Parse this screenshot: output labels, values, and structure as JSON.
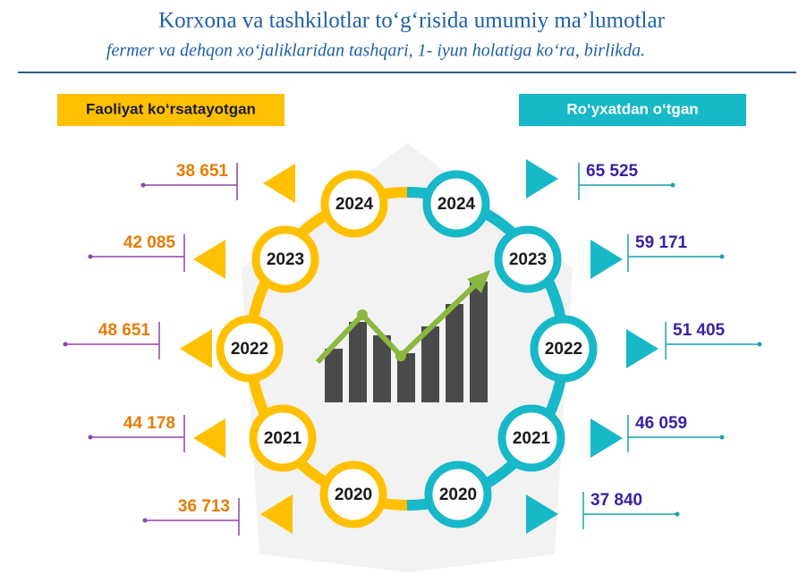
{
  "header": {
    "title": "Korxona va tashkilotlar to‘g‘risida umumiy ma’lumotlar",
    "subtitle": "fermer va dehqon xo‘jaliklaridan tashqari, 1- iyun holatiga ko‘ra, birlikda."
  },
  "left": {
    "label": "Faoliyat ko‘rsatayotgan",
    "items": [
      {
        "year": "2024",
        "value": "38 651"
      },
      {
        "year": "2023",
        "value": "42 085"
      },
      {
        "year": "2022",
        "value": "48 651"
      },
      {
        "year": "2021",
        "value": "44 178"
      },
      {
        "year": "2020",
        "value": "36 713"
      }
    ]
  },
  "right": {
    "label": "Ro‘yxatdan o‘tgan",
    "items": [
      {
        "year": "2024",
        "value": "65 525"
      },
      {
        "year": "2023",
        "value": "59 171"
      },
      {
        "year": "2022",
        "value": "51 405"
      },
      {
        "year": "2021",
        "value": "46 059"
      },
      {
        "year": "2020",
        "value": "37 840"
      }
    ]
  }
}
